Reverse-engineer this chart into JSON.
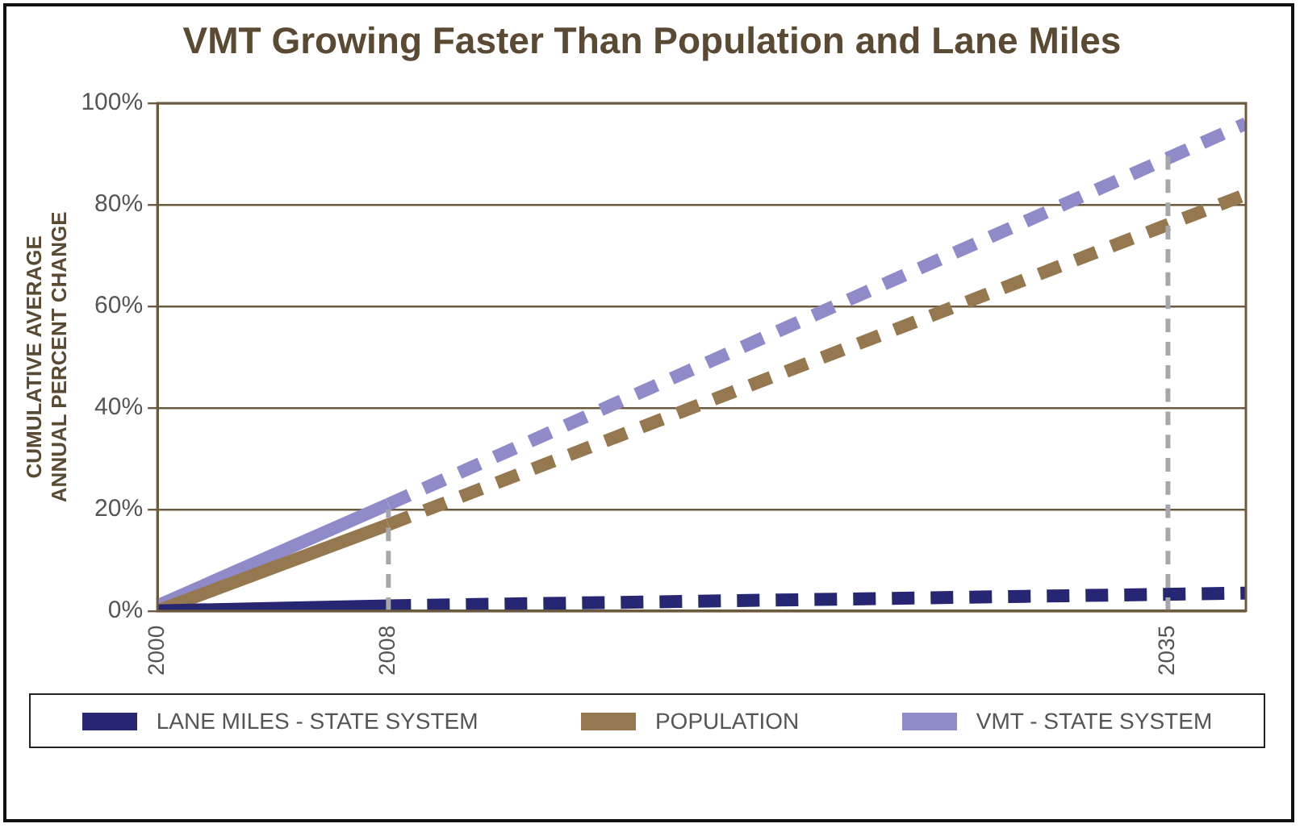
{
  "chart_data": {
    "type": "line",
    "title": "VMT Growing Faster Than Population and Lane Miles",
    "ylabel": "CUMULATIVE AVERAGE\nANNUAL PERCENT CHANGE",
    "xlim": [
      2000,
      2037.7
    ],
    "xticks": [
      2000,
      2008,
      2035
    ],
    "ylim": [
      0,
      100
    ],
    "yticks": [
      {
        "value": 0,
        "label": "0%"
      },
      {
        "value": 20,
        "label": "20%"
      },
      {
        "value": 40,
        "label": "40%"
      },
      {
        "value": 60,
        "label": "60%"
      },
      {
        "value": 80,
        "label": "80%"
      },
      {
        "value": 100,
        "label": "100%"
      }
    ],
    "grid": "y",
    "legend": "bottom",
    "marker": "none",
    "series": [
      {
        "color": "#a6a6ab",
        "line_style": "dashed",
        "x": [
          2008,
          2008
        ],
        "values": [
          0,
          20
        ]
      },
      {
        "color": "#a6a6ab",
        "line_style": "dashed",
        "x": [
          2035,
          2035
        ],
        "values": [
          0,
          90
        ]
      },
      {
        "name": "LANE MILES - STATE SYSTEM",
        "color": "#262673",
        "line_style": "solid",
        "x": [
          2000,
          2008
        ],
        "values": [
          0,
          1
        ]
      },
      {
        "color": "#262673",
        "line_style": "dashed",
        "x": [
          2008,
          2037.7
        ],
        "values": [
          1,
          3.5
        ]
      },
      {
        "name": "POPULATION",
        "color": "#957850",
        "line_style": "solid",
        "x": [
          2000,
          2008
        ],
        "values": [
          0,
          17
        ]
      },
      {
        "color": "#957850",
        "line_style": "dashed",
        "x": [
          2008,
          2037.7
        ],
        "values": [
          17,
          82
        ]
      },
      {
        "name": "VMT - STATE SYSTEM",
        "color": "#8f8bc8",
        "line_style": "solid",
        "x": [
          2000,
          2008
        ],
        "values": [
          1,
          21
        ]
      },
      {
        "color": "#8f8bc8",
        "line_style": "dashed",
        "x": [
          2008,
          2037.7
        ],
        "values": [
          21,
          96
        ]
      }
    ]
  }
}
